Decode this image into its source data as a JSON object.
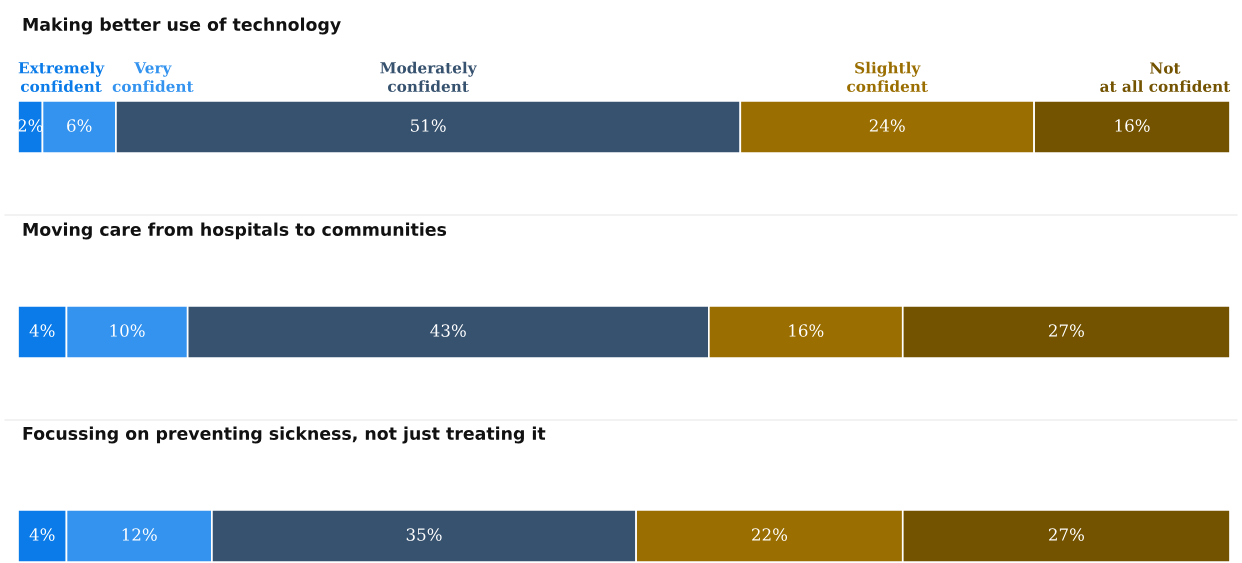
{
  "chart_data": [
    {
      "type": "bar",
      "orientation": "horizontal",
      "stacked": true,
      "title": "Making better use of technology",
      "categories": [
        null
      ],
      "legend": "top",
      "series": [
        {
          "name": "Extremely confident",
          "color": "#0a7be8",
          "values": [
            2
          ],
          "value_labels": [
            "2%"
          ]
        },
        {
          "name": "Very confident",
          "color": "#3393ef",
          "values": [
            6
          ],
          "value_labels": [
            "6%"
          ]
        },
        {
          "name": "Moderately confident",
          "color": "#37526f",
          "values": [
            51
          ],
          "value_labels": [
            "51%"
          ]
        },
        {
          "name": "Slightly confident",
          "color": "#9a6e00",
          "values": [
            24
          ],
          "value_labels": [
            "24%"
          ]
        },
        {
          "name": "Not at all confident",
          "color": "#735300",
          "values": [
            16
          ],
          "value_labels": [
            "16%"
          ]
        }
      ]
    },
    {
      "type": "bar",
      "orientation": "horizontal",
      "stacked": true,
      "title": "Moving care from hospitals to communities",
      "categories": [
        null
      ],
      "series": [
        {
          "color": "#0a7be8",
          "values": [
            4
          ],
          "value_labels": [
            "4%"
          ]
        },
        {
          "color": "#3393ef",
          "values": [
            10
          ],
          "value_labels": [
            "10%"
          ]
        },
        {
          "color": "#37526f",
          "values": [
            43
          ],
          "value_labels": [
            "43%"
          ]
        },
        {
          "color": "#9a6e00",
          "values": [
            16
          ],
          "value_labels": [
            "16%"
          ]
        },
        {
          "color": "#735300",
          "values": [
            27
          ],
          "value_labels": [
            "27%"
          ]
        }
      ]
    },
    {
      "type": "bar",
      "orientation": "horizontal",
      "stacked": true,
      "title": "Focussing on preventing sickness, not just treating it",
      "categories": [
        null
      ],
      "series": [
        {
          "color": "#0a7be8",
          "values": [
            4
          ],
          "value_labels": [
            "4%"
          ]
        },
        {
          "color": "#3393ef",
          "values": [
            12
          ],
          "value_labels": [
            "12%"
          ]
        },
        {
          "color": "#37526f",
          "values": [
            35
          ],
          "value_labels": [
            "35%"
          ]
        },
        {
          "color": "#9a6e00",
          "values": [
            22
          ],
          "value_labels": [
            "22%"
          ]
        },
        {
          "color": "#735300",
          "values": [
            27
          ],
          "value_labels": [
            "27%"
          ]
        }
      ]
    }
  ]
}
